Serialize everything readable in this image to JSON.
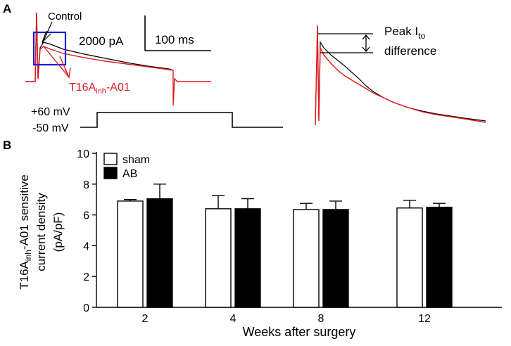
{
  "panel_a": {
    "label": "A",
    "control_label": "Control",
    "drug_label_main": "T16A",
    "drug_label_sub": "inh",
    "drug_label_suffix": "-A01",
    "scale_current": "2000 pA",
    "scale_time": "100 ms",
    "voltage_high": "+60 mV",
    "voltage_low": "-50 mV",
    "peak_label_line1_main": "Peak I",
    "peak_label_line1_sub": "to",
    "peak_label_line2": "difference",
    "colors": {
      "control": "#000000",
      "drug": "#e0191b",
      "box": "#1a1adb"
    }
  },
  "panel_b": {
    "label": "B"
  },
  "chart_data": {
    "type": "bar",
    "categories": [
      "2",
      "4",
      "8",
      "12"
    ],
    "series": [
      {
        "name": "sham",
        "values": [
          6.9,
          6.4,
          6.35,
          6.45
        ],
        "errors": [
          0.1,
          0.85,
          0.4,
          0.5
        ],
        "color": "#ffffff"
      },
      {
        "name": "AB",
        "values": [
          7.05,
          6.4,
          6.35,
          6.5
        ],
        "errors": [
          0.95,
          0.65,
          0.55,
          0.25
        ],
        "color": "#000000"
      }
    ],
    "xlabel": "Weeks after surgery",
    "ylabel_line1_prefix": "T16A",
    "ylabel_line1_sub": "inh",
    "ylabel_line1_suffix": "-A01 sensitive",
    "ylabel_line2": "current density",
    "ylabel_line3": "(pA/pF)",
    "ylim": [
      0,
      10
    ],
    "yticks": [
      0,
      2,
      4,
      6,
      8,
      10
    ]
  }
}
